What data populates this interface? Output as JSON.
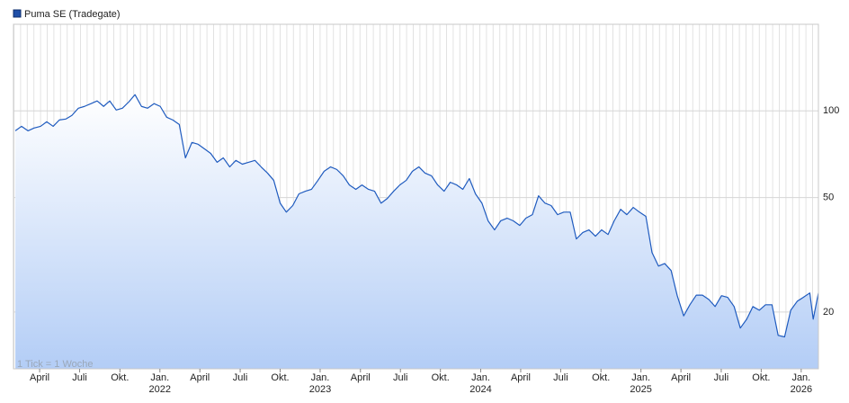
{
  "chart_data": {
    "type": "line",
    "legend": "Puma SE (Tradegate)",
    "annotation": "1 Tick = 1 Woche",
    "color": "#1f5bbf",
    "log_scale": true,
    "grid": true,
    "x": [
      0.6,
      2.6,
      4.7,
      6.7,
      8.8,
      10.8,
      12.9,
      14.9,
      17.0,
      19.0,
      21.1,
      23.1,
      25.2,
      27.2,
      29.3,
      31.3,
      33.4,
      35.4,
      37.5,
      39.5,
      41.6,
      43.6,
      45.7,
      47.7,
      49.8,
      51.8,
      53.9,
      55.9,
      58.0,
      60.0,
      62.1,
      64.1,
      66.2,
      68.2,
      70.3,
      72.3,
      74.4,
      76.4,
      78.5,
      80.5,
      82.6,
      84.6,
      86.7,
      88.7,
      90.8,
      92.8,
      94.9,
      96.9,
      99.0,
      101.0,
      103.1,
      105.1,
      107.2,
      109.2,
      111.3,
      113.3,
      115.4,
      117.4,
      119.5,
      121.5,
      123.6,
      125.6,
      127.7,
      129.7,
      131.8,
      133.8,
      135.9,
      137.9,
      140.0,
      142.0,
      144.1,
      146.1,
      148.2,
      150.2,
      152.3,
      154.3,
      156.4,
      158.4,
      160.5,
      162.5,
      164.6,
      166.6,
      168.7,
      170.7,
      172.8,
      174.8,
      176.9,
      178.9,
      181.0,
      183.0,
      185.1,
      187.1,
      189.2,
      191.2,
      193.3,
      195.3,
      197.4,
      199.4,
      201.5,
      203.5,
      205.6,
      207.6,
      209.7,
      211.7,
      213.8,
      215.8,
      217.9,
      219.9,
      222.0,
      224.0,
      226.1,
      228.1,
      230.2,
      232.2,
      234.3,
      236.3,
      238.4,
      240.4,
      242.5,
      244.5,
      246.6,
      248.6,
      250.7,
      252.7,
      254.8,
      256.8,
      258.9,
      260.0,
      261.7
    ],
    "values": [
      85.3,
      88.4,
      85.3,
      87.2,
      88.4,
      91.7,
      88.4,
      93.0,
      93.7,
      96.5,
      102.2,
      103.7,
      106.0,
      108.3,
      103.7,
      108.3,
      100.7,
      102.2,
      107.5,
      113.9,
      103.7,
      102.2,
      106.0,
      103.7,
      95.1,
      93.0,
      89.7,
      68.7,
      77.7,
      76.6,
      73.8,
      71.2,
      66.3,
      68.7,
      63.9,
      67.3,
      65.3,
      66.3,
      67.3,
      63.9,
      60.8,
      57.4,
      47.8,
      44.5,
      46.9,
      51.5,
      52.6,
      53.4,
      57.4,
      61.7,
      63.9,
      62.6,
      59.5,
      55.3,
      53.4,
      55.3,
      53.4,
      52.6,
      47.8,
      49.6,
      52.6,
      55.3,
      57.4,
      61.7,
      63.9,
      60.8,
      59.5,
      55.3,
      52.6,
      56.5,
      55.3,
      53.4,
      58.2,
      51.5,
      47.8,
      41.5,
      38.6,
      41.5,
      42.4,
      41.5,
      40.0,
      42.4,
      43.6,
      50.7,
      47.8,
      46.9,
      43.6,
      44.5,
      44.5,
      35.9,
      37.8,
      38.6,
      36.7,
      38.6,
      37.2,
      41.5,
      45.5,
      43.6,
      46.2,
      44.5,
      43.0,
      32.2,
      28.9,
      29.5,
      27.9,
      22.8,
      19.4,
      21.2,
      22.9,
      22.9,
      22.1,
      20.9,
      22.8,
      22.5,
      20.9,
      17.6,
      18.9,
      20.9,
      20.3,
      21.2,
      21.2,
      16.6,
      16.4,
      20.3,
      21.8,
      22.5,
      23.3,
      18.9,
      23.3
    ],
    "xlim": [
      0,
      261.7
    ],
    "ylim": [
      12.7,
      200
    ],
    "yticks": [
      20,
      50,
      100
    ],
    "xticks": [
      {
        "value": 8.5,
        "label": "April"
      },
      {
        "value": 21.5,
        "label": "Juli"
      },
      {
        "value": 34.6,
        "label": "Okt."
      },
      {
        "value": 47.6,
        "label": "Jan."
      },
      {
        "value": 60.6,
        "label": "April"
      },
      {
        "value": 73.7,
        "label": "Juli"
      },
      {
        "value": 86.7,
        "label": "Okt."
      },
      {
        "value": 99.7,
        "label": "Jan."
      },
      {
        "value": 112.8,
        "label": "April"
      },
      {
        "value": 125.8,
        "label": "Juli"
      },
      {
        "value": 138.8,
        "label": "Okt."
      },
      {
        "value": 151.9,
        "label": "Jan."
      },
      {
        "value": 164.9,
        "label": "April"
      },
      {
        "value": 177.9,
        "label": "Juli"
      },
      {
        "value": 191.0,
        "label": "Okt."
      },
      {
        "value": 204.0,
        "label": "Jan."
      },
      {
        "value": 217.0,
        "label": "April"
      },
      {
        "value": 230.1,
        "label": "Juli"
      },
      {
        "value": 243.1,
        "label": "Okt."
      },
      {
        "value": 256.1,
        "label": "Jan."
      }
    ],
    "year_labels": [
      {
        "value": 47.6,
        "label": "2022"
      },
      {
        "value": 99.7,
        "label": "2023"
      },
      {
        "value": 151.9,
        "label": "2024"
      },
      {
        "value": 204.0,
        "label": "2025"
      },
      {
        "value": 256.1,
        "label": "2026"
      }
    ]
  }
}
